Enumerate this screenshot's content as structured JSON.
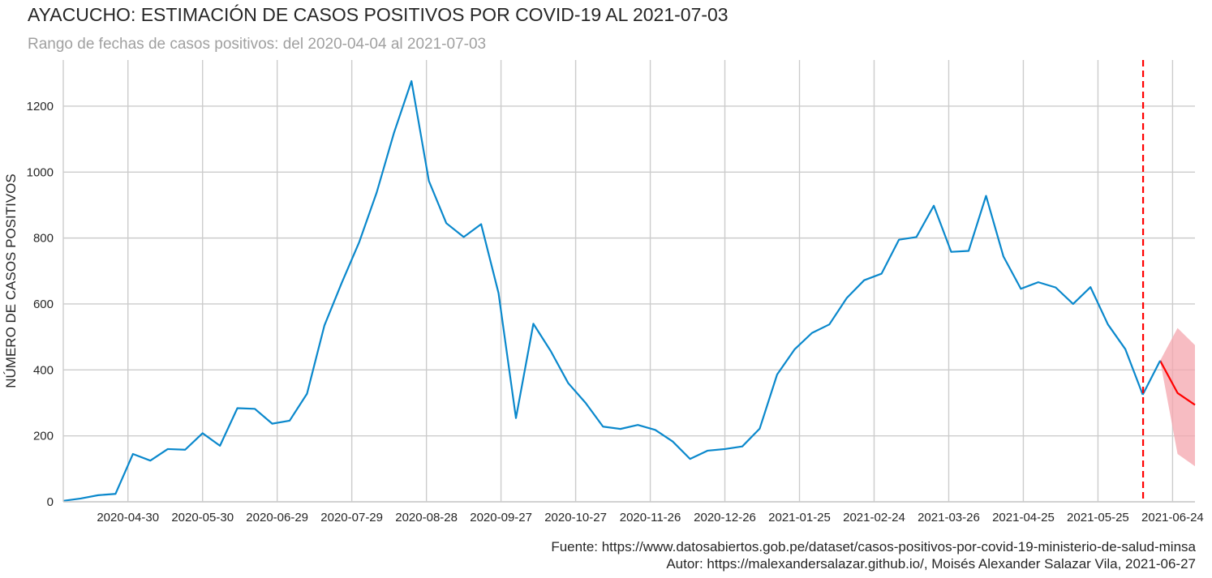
{
  "header": {
    "title": "AYACUCHO: ESTIMACIÓN DE CASOS POSITIVOS POR COVID-19 AL 2021-07-03",
    "subtitle": "Rango de fechas de casos positivos: del 2020-04-04 al 2021-07-03"
  },
  "footer": {
    "source": "Fuente: https://www.datosabiertos.gob.pe/dataset/casos-positivos-por-covid-19-ministerio-de-salud-minsa",
    "author": "Autor: https://malexandersalazar.github.io/, Moisés Alexander Salazar Vila, 2021-06-27"
  },
  "chart_data": {
    "type": "line",
    "title": "AYACUCHO: ESTIMACIÓN DE CASOS POSITIVOS POR COVID-19 AL 2021-07-03",
    "subtitle": "Rango de fechas de casos positivos: del 2020-04-04 al 2021-07-03",
    "xlabel": "",
    "ylabel": "NÚMERO DE CASOS POSITIVOS",
    "xlim": [
      "2020-04-04",
      "2021-07-03"
    ],
    "ylim": [
      0,
      1340
    ],
    "yticks": [
      0,
      200,
      400,
      600,
      800,
      1000,
      1200
    ],
    "xticks": [
      "2020-04-30",
      "2020-05-30",
      "2020-06-29",
      "2020-07-29",
      "2020-08-28",
      "2020-09-27",
      "2020-10-27",
      "2020-11-26",
      "2020-12-26",
      "2021-01-25",
      "2021-02-24",
      "2021-03-26",
      "2021-04-25",
      "2021-05-25",
      "2021-06-24"
    ],
    "grid": true,
    "colors": {
      "observed": "#0a88cc",
      "forecast": "#ff0000",
      "band": "#f4a6ad",
      "cutoff": "#ff0000"
    },
    "observed": {
      "x": [
        "2020-04-04",
        "2020-04-11",
        "2020-04-18",
        "2020-04-25",
        "2020-05-02",
        "2020-05-09",
        "2020-05-16",
        "2020-05-23",
        "2020-05-30",
        "2020-06-06",
        "2020-06-13",
        "2020-06-20",
        "2020-06-27",
        "2020-07-04",
        "2020-07-11",
        "2020-07-18",
        "2020-07-25",
        "2020-08-01",
        "2020-08-08",
        "2020-08-15",
        "2020-08-22",
        "2020-08-29",
        "2020-09-05",
        "2020-09-12",
        "2020-09-19",
        "2020-09-26",
        "2020-10-03",
        "2020-10-10",
        "2020-10-17",
        "2020-10-24",
        "2020-10-31",
        "2020-11-07",
        "2020-11-14",
        "2020-11-21",
        "2020-11-28",
        "2020-12-05",
        "2020-12-12",
        "2020-12-19",
        "2020-12-26",
        "2021-01-02",
        "2021-01-09",
        "2021-01-16",
        "2021-01-23",
        "2021-01-30",
        "2021-02-06",
        "2021-02-13",
        "2021-02-20",
        "2021-02-27",
        "2021-03-06",
        "2021-03-13",
        "2021-03-20",
        "2021-03-27",
        "2021-04-03",
        "2021-04-10",
        "2021-04-17",
        "2021-04-24",
        "2021-05-01",
        "2021-05-08",
        "2021-05-15",
        "2021-05-22",
        "2021-05-29",
        "2021-06-05",
        "2021-06-12"
      ],
      "y": [
        3,
        10,
        20,
        24,
        145,
        125,
        160,
        158,
        208,
        170,
        284,
        282,
        237,
        246,
        328,
        535,
        665,
        788,
        938,
        1120,
        1276,
        973,
        845,
        803,
        842,
        633,
        254,
        540,
        457,
        360,
        300,
        228,
        221,
        233,
        218,
        183,
        130,
        155,
        160,
        168,
        222,
        386,
        462,
        512,
        538,
        618,
        672,
        692,
        795,
        803,
        898,
        758,
        761,
        928,
        744,
        646,
        666,
        650,
        600,
        651,
        538,
        463,
        325
      ]
    },
    "forecast": {
      "x": [
        "2021-06-12",
        "2021-06-19",
        "2021-06-26",
        "2021-07-03"
      ],
      "y": [
        325,
        428,
        330,
        294
      ],
      "lower": [
        325,
        428,
        145,
        108
      ],
      "upper": [
        325,
        428,
        527,
        475
      ]
    },
    "cutoff_date": "2021-06-19"
  }
}
